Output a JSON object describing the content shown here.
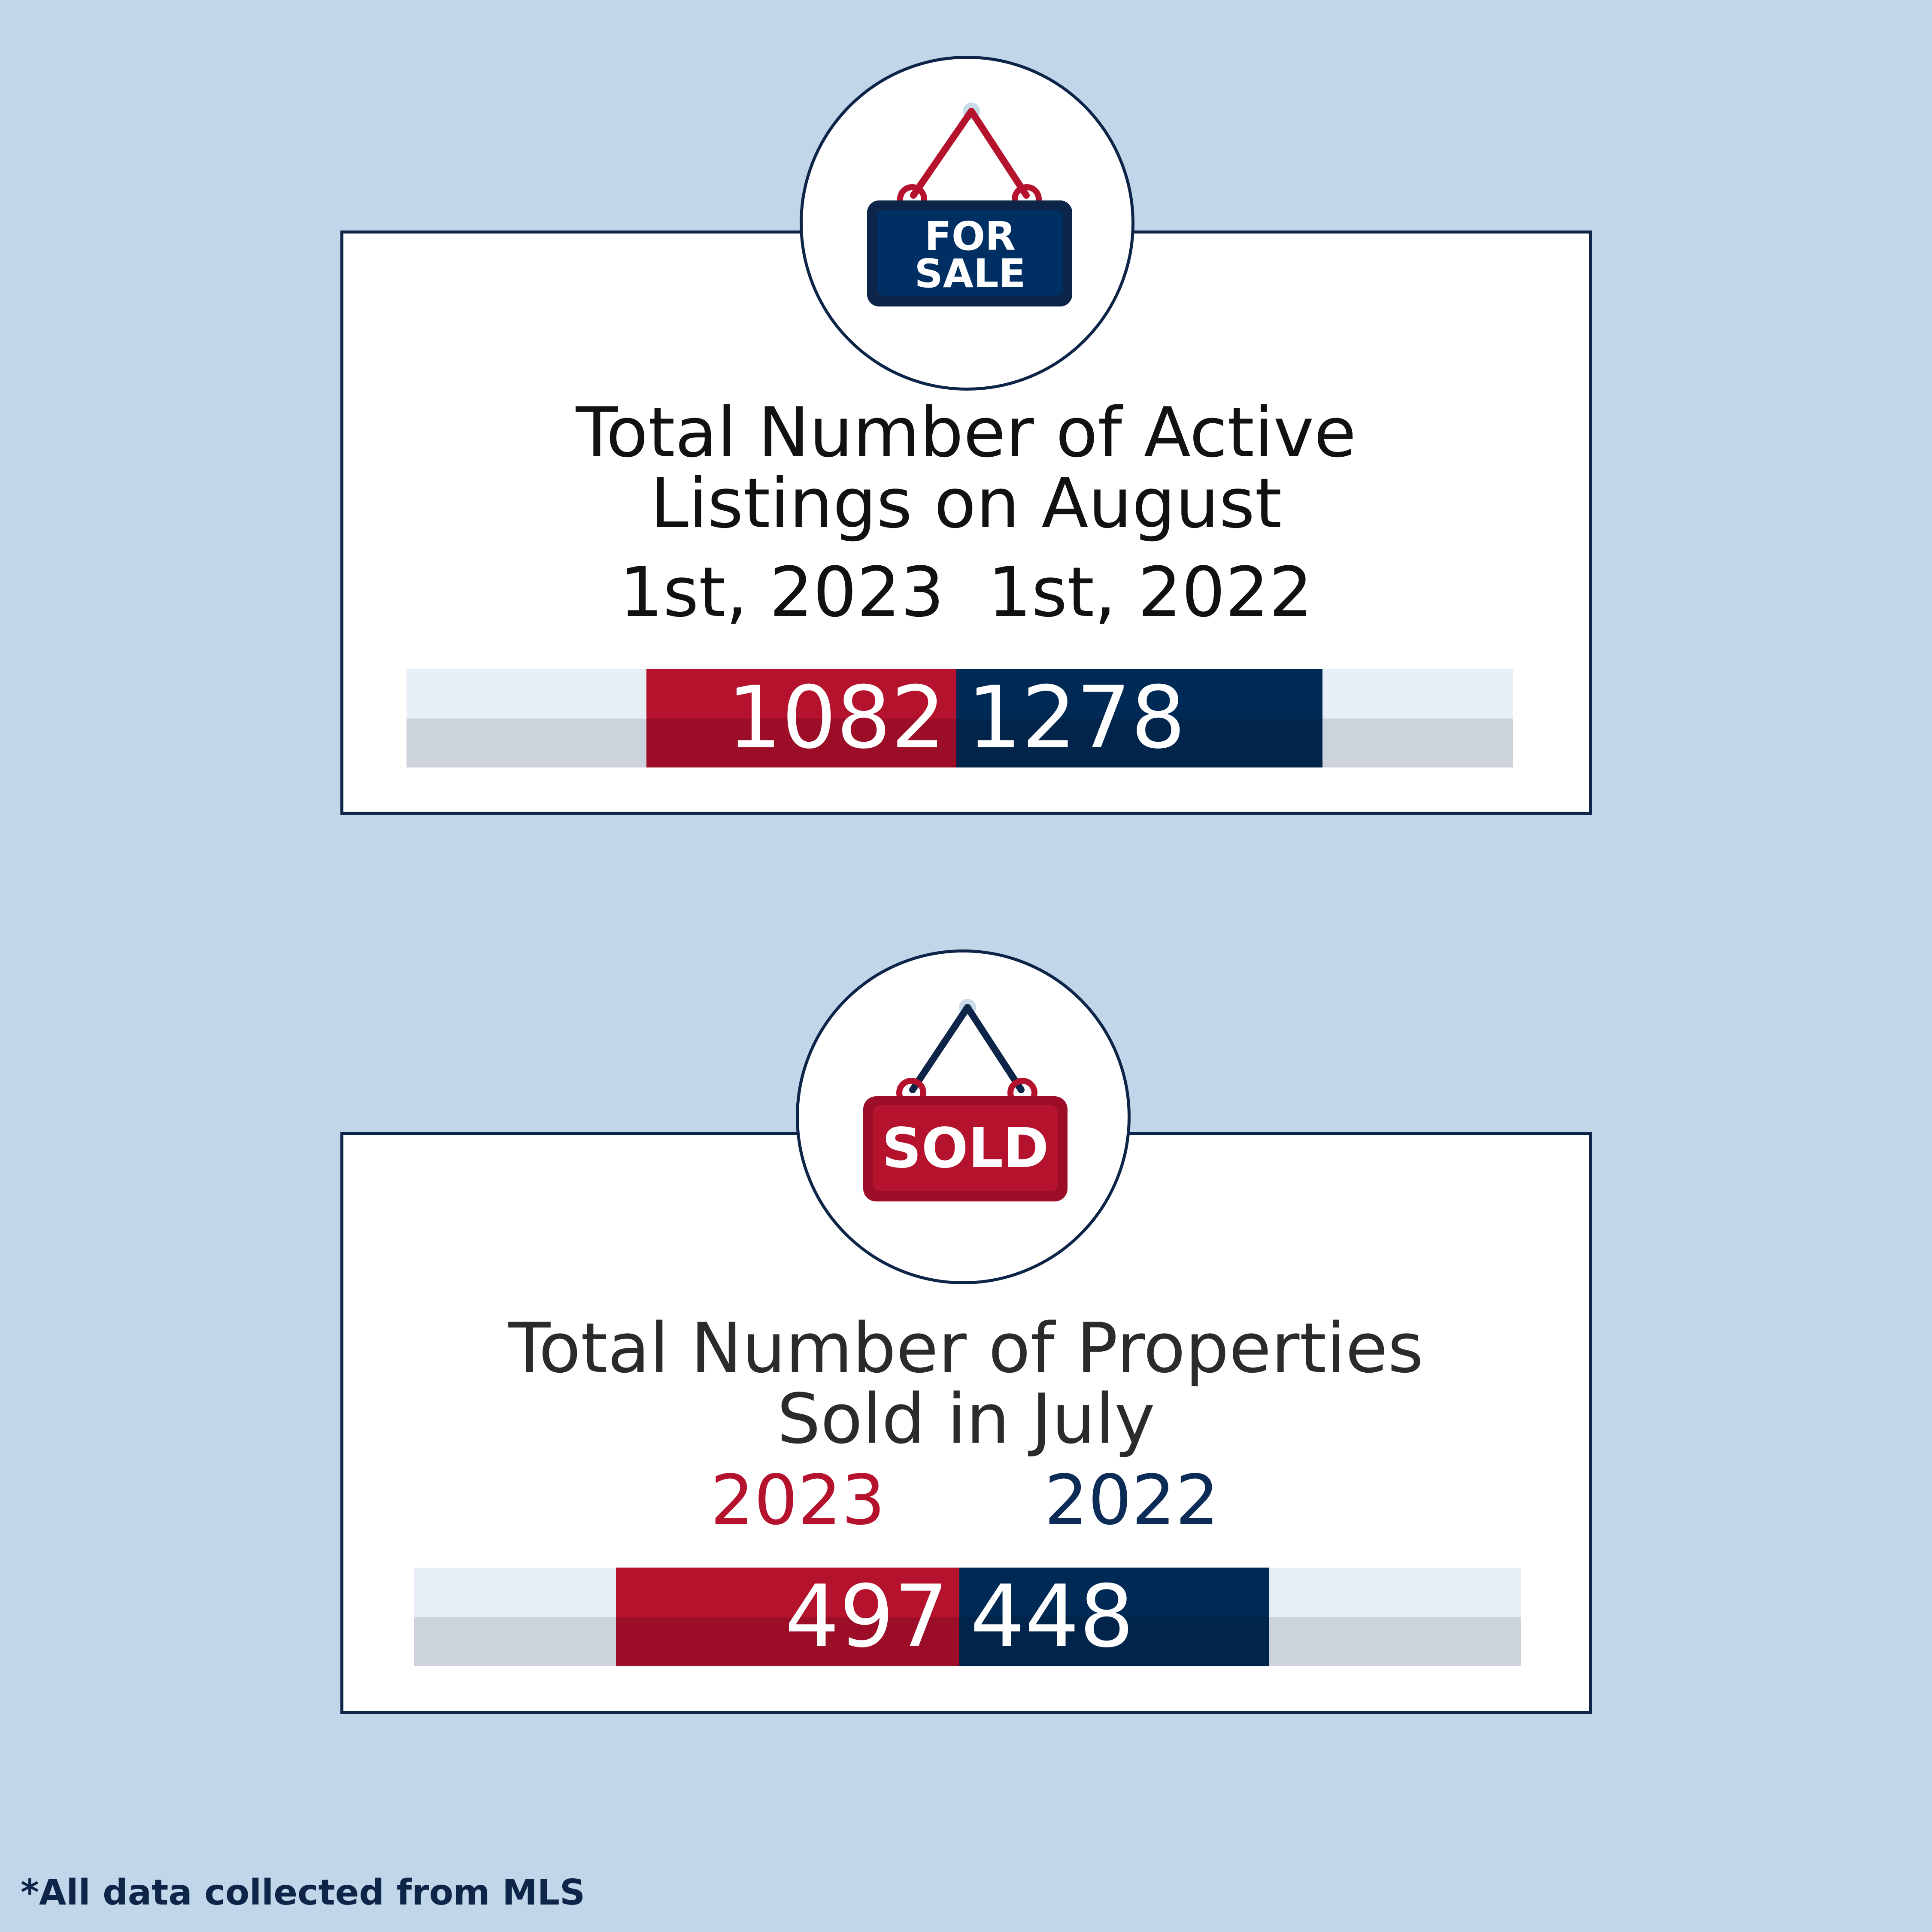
{
  "colors": {
    "background": "#c2d6ea",
    "navy": "#002a56",
    "red": "#b5122d",
    "outline": "#0c2548"
  },
  "icons": [
    "for-sale-sign-icon",
    "sold-sign-icon"
  ],
  "active_listings": {
    "sign_text": [
      "FOR",
      "SALE"
    ],
    "title_lines": [
      "Total Number of Active",
      "Listings on August"
    ],
    "dates": "1st, 2023  1st, 2022",
    "value_2023": "1082",
    "value_2022": "1278"
  },
  "sold_properties": {
    "sign_text": "SOLD",
    "title_lines": [
      "Total Number of Properties",
      "Sold in July"
    ],
    "year_2023": "2023",
    "year_2022": "2022",
    "value_2023": "497",
    "value_2022": "448"
  },
  "footnote": "*All data collected from MLS",
  "chart_data": [
    {
      "type": "bar",
      "title": "Total Number of Active Listings on August",
      "categories": [
        "1st, 2023",
        "1st, 2022"
      ],
      "values": [
        1082,
        1278
      ],
      "colors": [
        "#b5122d",
        "#002a56"
      ]
    },
    {
      "type": "bar",
      "title": "Total Number of Properties Sold in July",
      "categories": [
        "2023",
        "2022"
      ],
      "values": [
        497,
        448
      ],
      "colors": [
        "#b5122d",
        "#002a56"
      ]
    }
  ]
}
